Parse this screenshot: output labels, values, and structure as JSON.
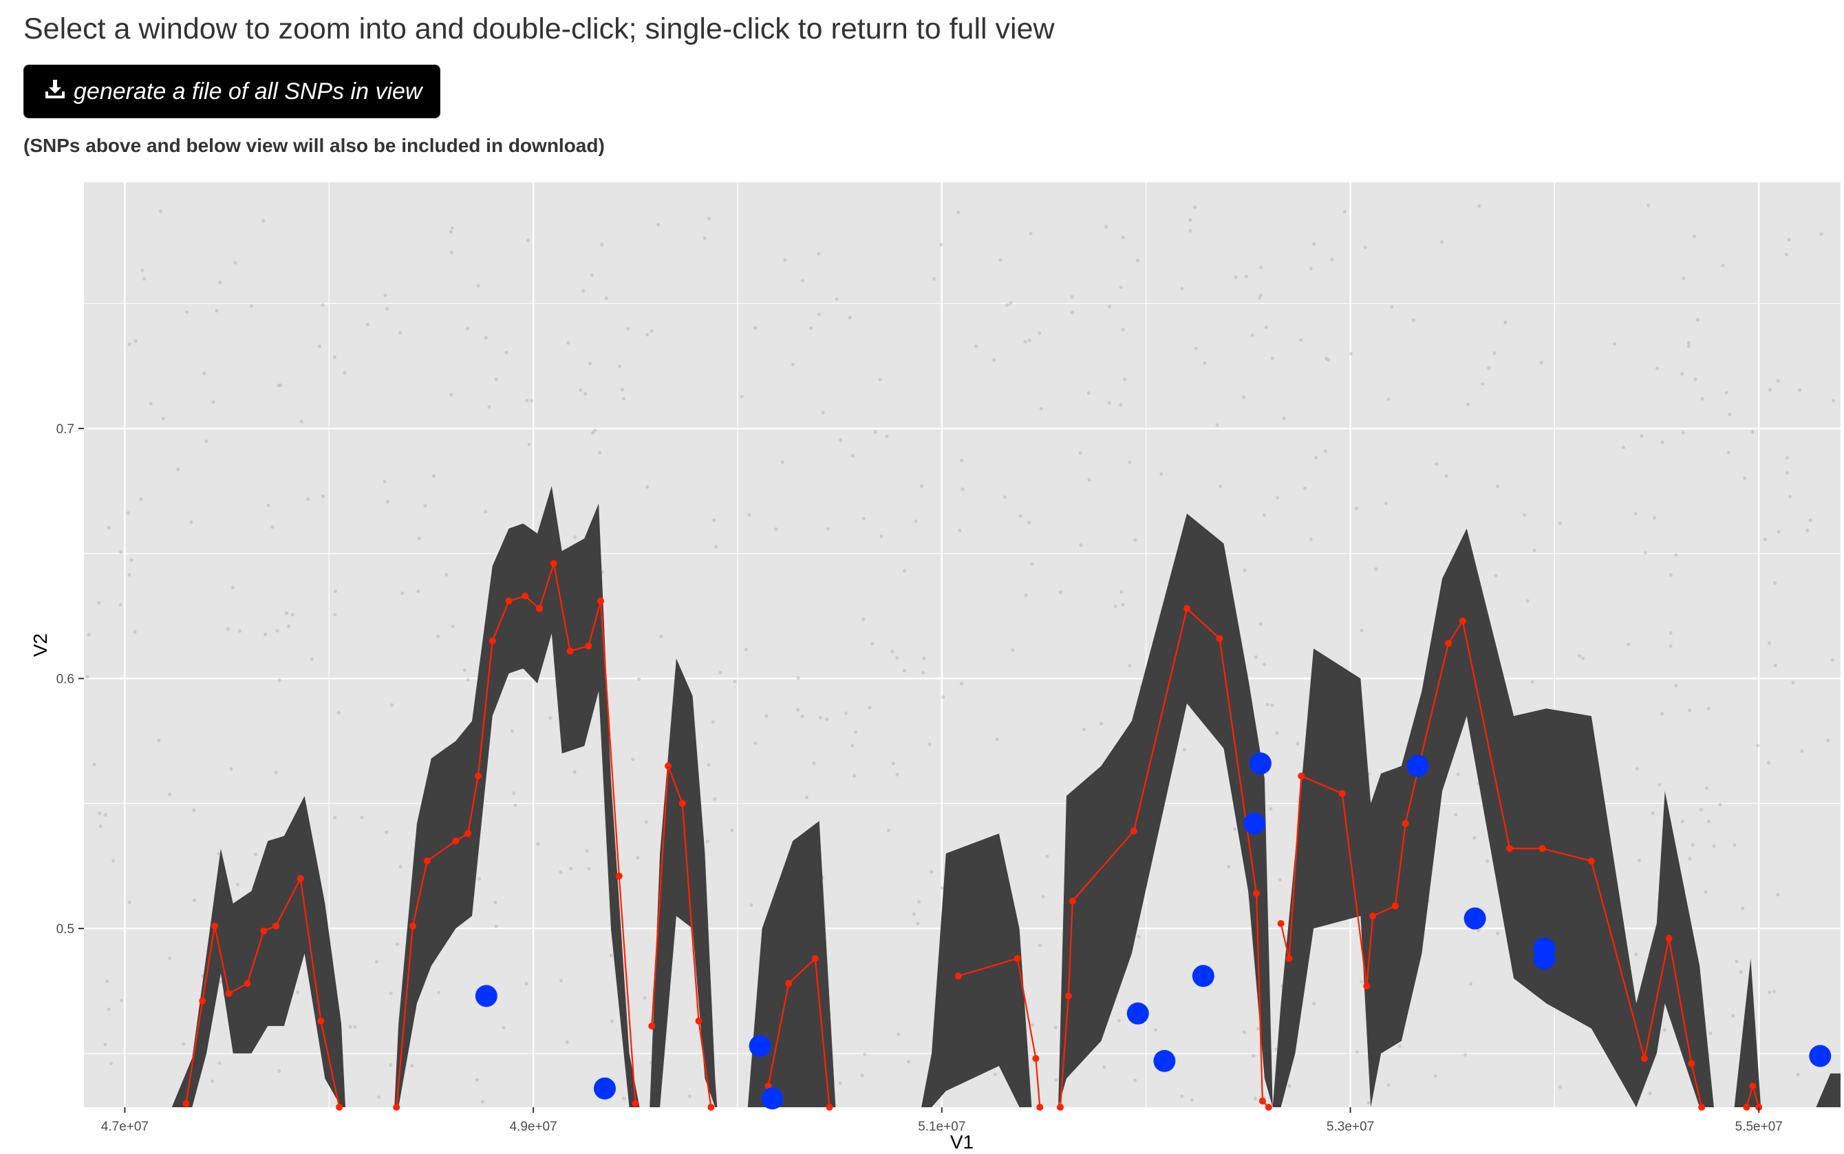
{
  "header": {
    "title": "Select a window to zoom into and double-click; single-click to return to full view"
  },
  "download": {
    "label": "generate a file of all SNPs in view",
    "icon": "download-icon"
  },
  "note": "(SNPs above and below view will also be included in download)",
  "colors": {
    "panel_bg": "#e5e5e5",
    "grid": "#ffffff",
    "band": "#404040",
    "line": "#ff2200",
    "highlight": "#0033ff",
    "background_points": "#b8b8b8"
  },
  "chart_data": {
    "type": "line",
    "xlabel": "V1",
    "ylabel": "V2",
    "xlim": [
      46800000,
      55400000
    ],
    "ylim": [
      0.4285,
      0.7985
    ],
    "xticks": [
      47000000,
      49000000,
      51000000,
      53000000,
      55000000
    ],
    "xtick_labels": [
      "4.7e+07",
      "4.9e+07",
      "5.1e+07",
      "5.3e+07",
      "5.5e+07"
    ],
    "yticks": [
      0.5,
      0.6,
      0.7
    ],
    "ytick_labels": [
      "0.5",
      "0.6",
      "0.7"
    ],
    "grid": true,
    "legend": "none",
    "background_points": {
      "description_free": true,
      "count": 600,
      "y_range": [
        0.43,
        0.79
      ]
    },
    "ribbon_segments": [
      [
        {
          "x": 47230000,
          "lower": 0.4285,
          "upper": 0.4285
        },
        {
          "x": 47330000,
          "lower": 0.4285,
          "upper": 0.4482
        },
        {
          "x": 47400000,
          "lower": 0.45,
          "upper": 0.4898
        },
        {
          "x": 47470000,
          "lower": 0.482,
          "upper": 0.532
        },
        {
          "x": 47530000,
          "lower": 0.45,
          "upper": 0.51
        },
        {
          "x": 47620000,
          "lower": 0.45,
          "upper": 0.515
        },
        {
          "x": 47700000,
          "lower": 0.461,
          "upper": 0.535
        },
        {
          "x": 47780000,
          "lower": 0.461,
          "upper": 0.537
        },
        {
          "x": 47880000,
          "lower": 0.49,
          "upper": 0.553
        },
        {
          "x": 47980000,
          "lower": 0.44,
          "upper": 0.51
        },
        {
          "x": 48060000,
          "lower": 0.4285,
          "upper": 0.462
        },
        {
          "x": 48080000,
          "lower": 0.4285,
          "upper": 0.4285
        }
      ],
      [
        {
          "x": 48320000,
          "lower": 0.4285,
          "upper": 0.4285
        },
        {
          "x": 48340000,
          "lower": 0.4285,
          "upper": 0.462
        },
        {
          "x": 48430000,
          "lower": 0.47,
          "upper": 0.542
        },
        {
          "x": 48500000,
          "lower": 0.485,
          "upper": 0.568
        },
        {
          "x": 48620000,
          "lower": 0.5,
          "upper": 0.575
        },
        {
          "x": 48700000,
          "lower": 0.505,
          "upper": 0.583
        },
        {
          "x": 48800000,
          "lower": 0.585,
          "upper": 0.645
        },
        {
          "x": 48880000,
          "lower": 0.602,
          "upper": 0.66
        },
        {
          "x": 48950000,
          "lower": 0.604,
          "upper": 0.662
        },
        {
          "x": 49020000,
          "lower": 0.598,
          "upper": 0.658
        },
        {
          "x": 49090000,
          "lower": 0.618,
          "upper": 0.677
        },
        {
          "x": 49140000,
          "lower": 0.57,
          "upper": 0.651
        },
        {
          "x": 49250000,
          "lower": 0.573,
          "upper": 0.656
        },
        {
          "x": 49320000,
          "lower": 0.595,
          "upper": 0.67
        },
        {
          "x": 49380000,
          "lower": 0.5,
          "upper": 0.56
        },
        {
          "x": 49470000,
          "lower": 0.4285,
          "upper": 0.45
        },
        {
          "x": 49520000,
          "lower": 0.4285,
          "upper": 0.4285
        }
      ],
      [
        {
          "x": 49570000,
          "lower": 0.4285,
          "upper": 0.4285
        },
        {
          "x": 49620000,
          "lower": 0.4285,
          "upper": 0.53
        },
        {
          "x": 49700000,
          "lower": 0.505,
          "upper": 0.608
        },
        {
          "x": 49780000,
          "lower": 0.5,
          "upper": 0.593
        },
        {
          "x": 49840000,
          "lower": 0.44,
          "upper": 0.53
        },
        {
          "x": 49890000,
          "lower": 0.4285,
          "upper": 0.44
        },
        {
          "x": 49900000,
          "lower": 0.4285,
          "upper": 0.4285
        }
      ],
      [
        {
          "x": 50050000,
          "lower": 0.4285,
          "upper": 0.4285
        },
        {
          "x": 50120000,
          "lower": 0.4285,
          "upper": 0.5
        },
        {
          "x": 50270000,
          "lower": 0.4285,
          "upper": 0.535
        },
        {
          "x": 50400000,
          "lower": 0.4285,
          "upper": 0.543
        },
        {
          "x": 50480000,
          "lower": 0.4285,
          "upper": 0.4285
        }
      ],
      [
        {
          "x": 50900000,
          "lower": 0.4285,
          "upper": 0.4285
        },
        {
          "x": 50950000,
          "lower": 0.4285,
          "upper": 0.45
        },
        {
          "x": 51020000,
          "lower": 0.435,
          "upper": 0.53
        },
        {
          "x": 51280000,
          "lower": 0.445,
          "upper": 0.538
        },
        {
          "x": 51380000,
          "lower": 0.4285,
          "upper": 0.5
        },
        {
          "x": 51440000,
          "lower": 0.4285,
          "upper": 0.4285
        }
      ],
      [
        {
          "x": 51570000,
          "lower": 0.4285,
          "upper": 0.4285
        },
        {
          "x": 51610000,
          "lower": 0.44,
          "upper": 0.553
        },
        {
          "x": 51780000,
          "lower": 0.455,
          "upper": 0.565
        },
        {
          "x": 51930000,
          "lower": 0.49,
          "upper": 0.583
        },
        {
          "x": 52200000,
          "lower": 0.59,
          "upper": 0.666
        },
        {
          "x": 52380000,
          "lower": 0.572,
          "upper": 0.654
        },
        {
          "x": 52500000,
          "lower": 0.515,
          "upper": 0.6
        },
        {
          "x": 52580000,
          "lower": 0.44,
          "upper": 0.56
        },
        {
          "x": 52620000,
          "lower": 0.4285,
          "upper": 0.4285
        },
        {
          "x": 52660000,
          "lower": 0.4285,
          "upper": 0.47
        },
        {
          "x": 52730000,
          "lower": 0.45,
          "upper": 0.53
        },
        {
          "x": 52820000,
          "lower": 0.5,
          "upper": 0.612
        },
        {
          "x": 53050000,
          "lower": 0.505,
          "upper": 0.6
        },
        {
          "x": 53100000,
          "lower": 0.4285,
          "upper": 0.55
        },
        {
          "x": 53150000,
          "lower": 0.45,
          "upper": 0.562
        },
        {
          "x": 53250000,
          "lower": 0.455,
          "upper": 0.565
        },
        {
          "x": 53350000,
          "lower": 0.49,
          "upper": 0.595
        },
        {
          "x": 53450000,
          "lower": 0.555,
          "upper": 0.64
        },
        {
          "x": 53570000,
          "lower": 0.585,
          "upper": 0.66
        },
        {
          "x": 53800000,
          "lower": 0.48,
          "upper": 0.585
        },
        {
          "x": 53960000,
          "lower": 0.47,
          "upper": 0.588
        },
        {
          "x": 54180000,
          "lower": 0.46,
          "upper": 0.585
        },
        {
          "x": 54400000,
          "lower": 0.4285,
          "upper": 0.47
        },
        {
          "x": 54500000,
          "lower": 0.45,
          "upper": 0.502
        },
        {
          "x": 54540000,
          "lower": 0.47,
          "upper": 0.555
        },
        {
          "x": 54710000,
          "lower": 0.4285,
          "upper": 0.485
        },
        {
          "x": 54780000,
          "lower": 0.4285,
          "upper": 0.4285
        }
      ],
      [
        {
          "x": 54880000,
          "lower": 0.4285,
          "upper": 0.4285
        },
        {
          "x": 54960000,
          "lower": 0.4285,
          "upper": 0.488
        },
        {
          "x": 55010000,
          "lower": 0.4285,
          "upper": 0.4285
        }
      ],
      [
        {
          "x": 55280000,
          "lower": 0.4285,
          "upper": 0.4285
        },
        {
          "x": 55350000,
          "lower": 0.4285,
          "upper": 0.442
        },
        {
          "x": 55400000,
          "lower": 0.4285,
          "upper": 0.442
        }
      ]
    ],
    "series": [
      {
        "color": "#ff2200",
        "points": [
          [
            47300000,
            0.43
          ],
          [
            47380000,
            0.471
          ],
          [
            47440000,
            0.501
          ],
          [
            47510000,
            0.474
          ],
          [
            47600000,
            0.478
          ],
          [
            47680000,
            0.499
          ],
          [
            47740000,
            0.501
          ],
          [
            47860000,
            0.52
          ],
          [
            47960000,
            0.463
          ],
          [
            48050000,
            0.4285
          ],
          [
            null,
            null
          ],
          [
            48330000,
            0.4285
          ],
          [
            48410000,
            0.501
          ],
          [
            48480000,
            0.527
          ],
          [
            48620000,
            0.535
          ],
          [
            48680000,
            0.538
          ],
          [
            48730000,
            0.561
          ],
          [
            48800000,
            0.615
          ],
          [
            48880000,
            0.631
          ],
          [
            48960000,
            0.633
          ],
          [
            49030000,
            0.628
          ],
          [
            49100000,
            0.646
          ],
          [
            49180000,
            0.611
          ],
          [
            49270000,
            0.613
          ],
          [
            49330000,
            0.631
          ],
          [
            49420000,
            0.521
          ],
          [
            49500000,
            0.43
          ],
          [
            null,
            null
          ],
          [
            49580000,
            0.461
          ],
          [
            49660000,
            0.565
          ],
          [
            49730000,
            0.55
          ],
          [
            49810000,
            0.463
          ],
          [
            49870000,
            0.4285
          ],
          [
            null,
            null
          ],
          [
            50150000,
            0.437
          ],
          [
            50250000,
            0.478
          ],
          [
            50380000,
            0.488
          ],
          [
            50450000,
            0.4285
          ],
          [
            null,
            null
          ],
          [
            51080000,
            0.481
          ],
          [
            51370000,
            0.488
          ],
          [
            51460000,
            0.448
          ],
          [
            51480000,
            0.4285
          ],
          [
            null,
            null
          ],
          [
            51580000,
            0.4285
          ],
          [
            51620000,
            0.473
          ],
          [
            51640000,
            0.511
          ],
          [
            51940000,
            0.539
          ],
          [
            52200000,
            0.628
          ],
          [
            52360000,
            0.616
          ],
          [
            52540000,
            0.514
          ],
          [
            52570000,
            0.431
          ],
          [
            52600000,
            0.4285
          ],
          [
            null,
            null
          ],
          [
            52660000,
            0.502
          ],
          [
            52700000,
            0.488
          ],
          [
            52760000,
            0.561
          ],
          [
            52960000,
            0.554
          ],
          [
            53080000,
            0.477
          ],
          [
            53110000,
            0.505
          ],
          [
            53220000,
            0.509
          ],
          [
            53270000,
            0.542
          ],
          [
            53330000,
            0.563
          ],
          [
            53480000,
            0.614
          ],
          [
            53550000,
            0.623
          ],
          [
            53780000,
            0.532
          ],
          [
            53940000,
            0.532
          ],
          [
            54180000,
            0.527
          ],
          [
            54440000,
            0.448
          ],
          [
            54560000,
            0.496
          ],
          [
            54670000,
            0.446
          ],
          [
            54720000,
            0.4285
          ],
          [
            null,
            null
          ],
          [
            54940000,
            0.4285
          ],
          [
            54970000,
            0.437
          ],
          [
            55000000,
            0.4285
          ]
        ]
      }
    ],
    "highlight_points": [
      [
        48770000,
        0.473
      ],
      [
        49350000,
        0.436
      ],
      [
        50110000,
        0.453
      ],
      [
        50170000,
        0.432
      ],
      [
        51960000,
        0.466
      ],
      [
        52090000,
        0.447
      ],
      [
        52280000,
        0.481
      ],
      [
        52530000,
        0.542
      ],
      [
        52560000,
        0.566
      ],
      [
        53330000,
        0.565
      ],
      [
        53610000,
        0.504
      ],
      [
        53950000,
        0.492
      ],
      [
        53950000,
        0.488
      ],
      [
        55300000,
        0.449
      ]
    ]
  }
}
